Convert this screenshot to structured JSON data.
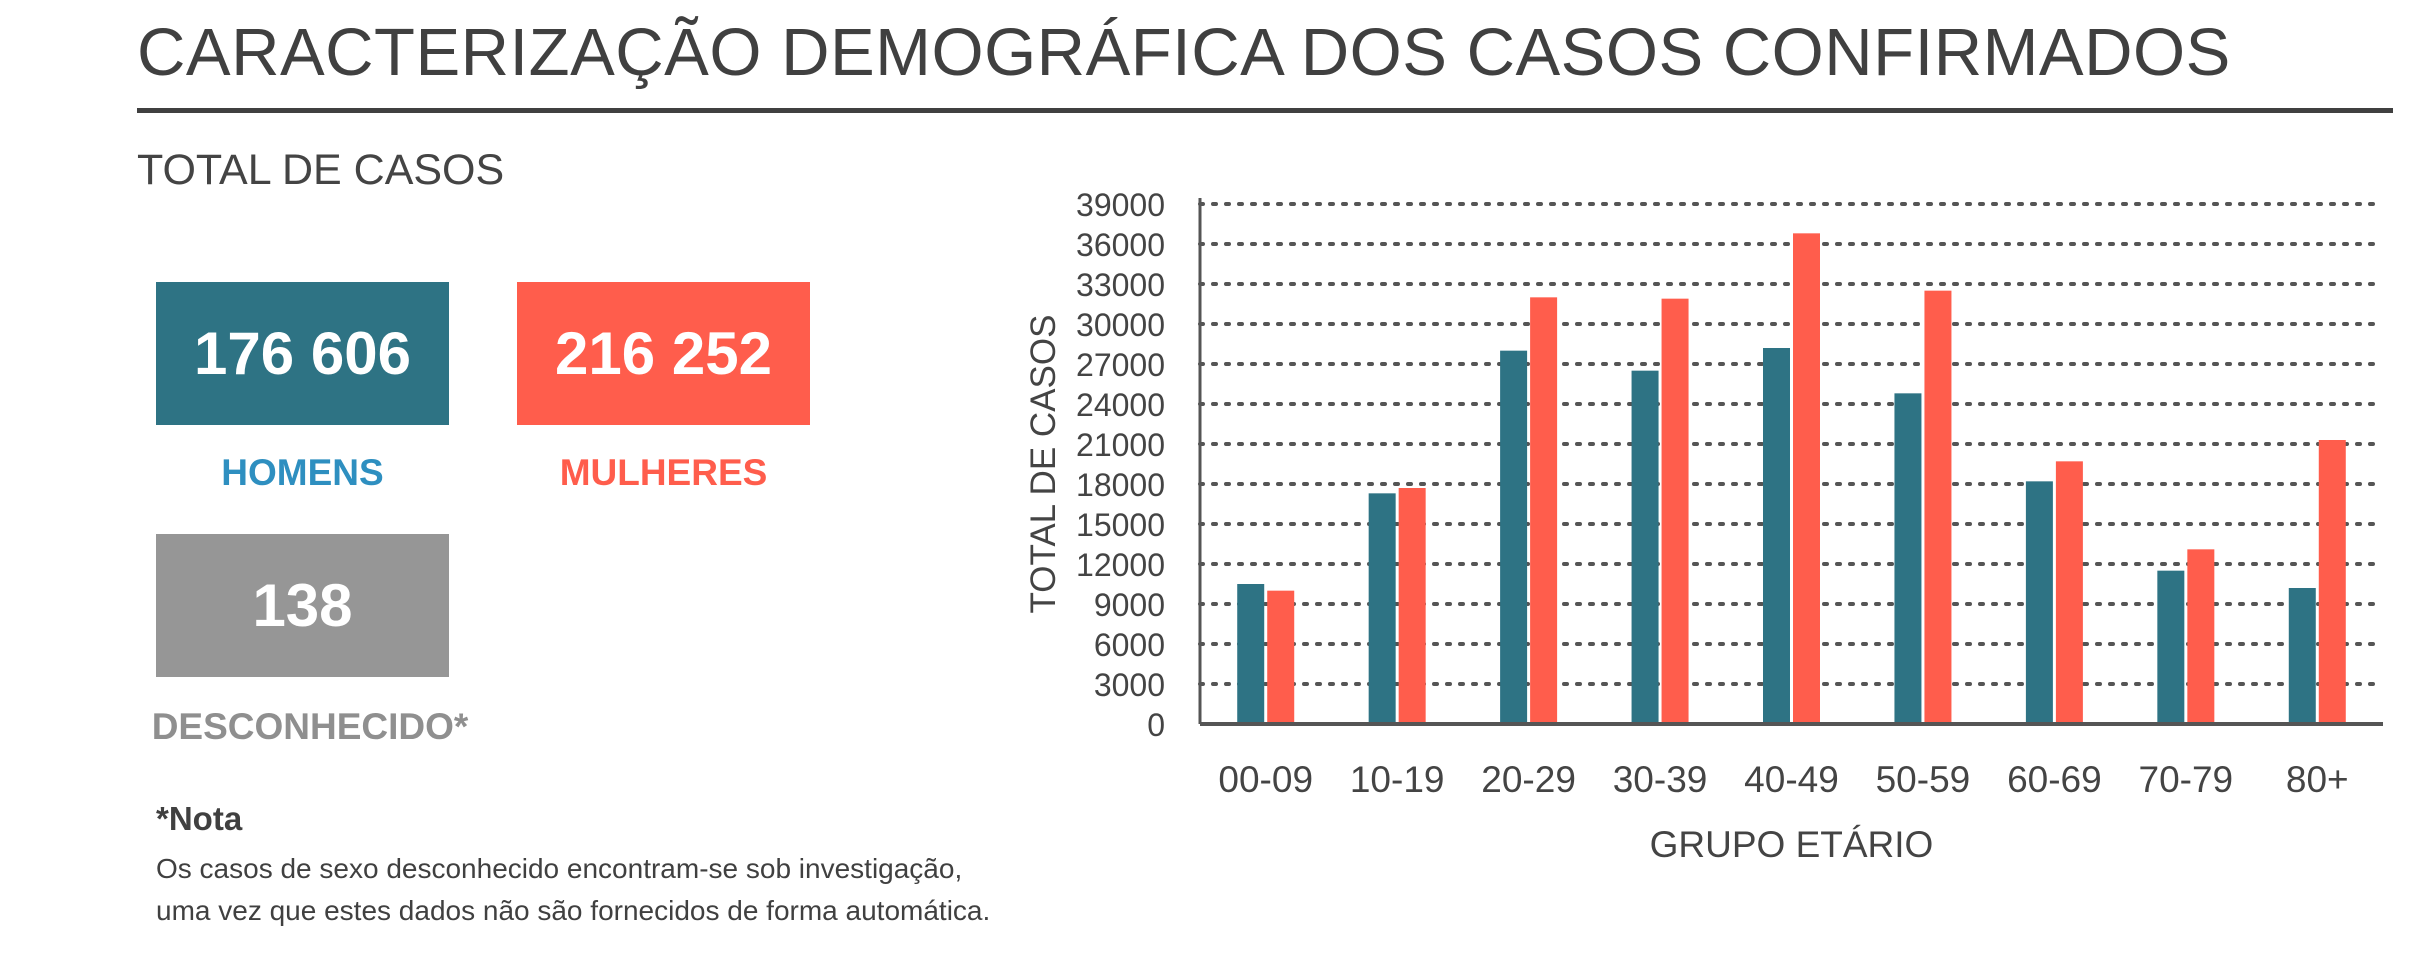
{
  "header": {
    "title": "CARACTERIZAÇÃO DEMOGRÁFICA DOS CASOS CONFIRMADOS",
    "subtitle": "TOTAL DE CASOS"
  },
  "totals": {
    "men": {
      "value": "176 606",
      "label": "HOMENS",
      "color": "#2e7384"
    },
    "women": {
      "value": "216 252",
      "label": "MULHERES",
      "color": "#ff5d4c"
    },
    "unknown": {
      "value": "138",
      "label": "DESCONHECIDO*",
      "color": "#969696"
    }
  },
  "note": {
    "title": "*Nota",
    "line1": "Os casos de sexo desconhecido encontram-se sob investigação,",
    "line2": "uma vez que estes dados não são fornecidos de forma automática."
  },
  "chart_data": {
    "type": "bar",
    "xlabel": "GRUPO ETÁRIO",
    "ylabel": "TOTAL DE CASOS",
    "ylim": [
      0,
      39000
    ],
    "yticks": [
      0,
      3000,
      6000,
      9000,
      12000,
      15000,
      18000,
      21000,
      24000,
      27000,
      30000,
      33000,
      36000,
      39000
    ],
    "grid": true,
    "categories": [
      "00-09",
      "10-19",
      "20-29",
      "30-39",
      "40-49",
      "50-59",
      "60-69",
      "70-79",
      "80+"
    ],
    "series": [
      {
        "values": [
          10500,
          17300,
          28000,
          26500,
          28200,
          24800,
          18200,
          11500,
          10200
        ],
        "color": "#2e7384"
      },
      {
        "values": [
          10000,
          17700,
          32000,
          31900,
          36800,
          32500,
          19700,
          13100,
          21300
        ],
        "color": "#ff5d4c"
      }
    ]
  }
}
